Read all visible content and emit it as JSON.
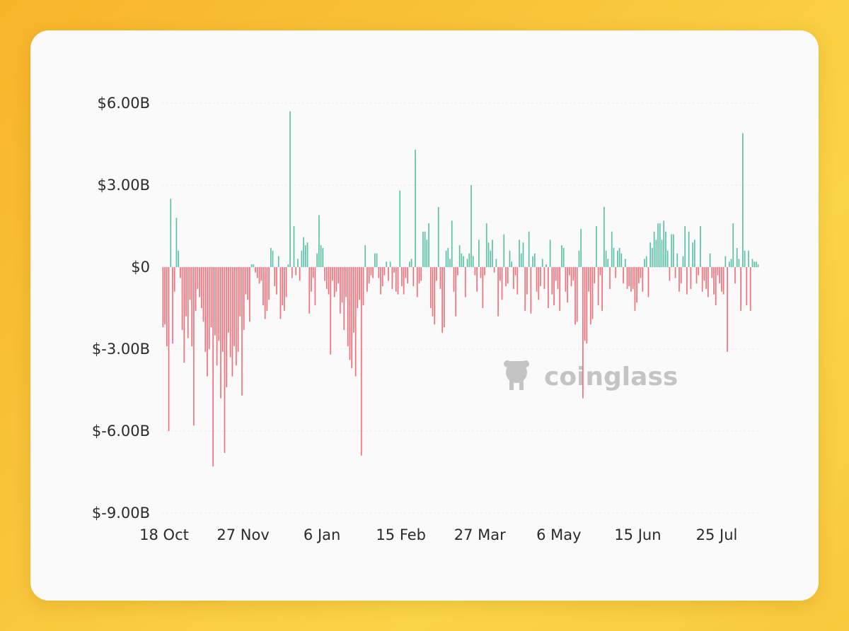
{
  "colors": {
    "positive": "#5cc2a6",
    "negative": "#f2707a",
    "grid": "#ececec",
    "axis_text": "#2b2b2b",
    "watermark": "#c4c4c4"
  },
  "watermark": {
    "text": "coinglass",
    "icon": "coinglass-logo-icon"
  },
  "chart_data": {
    "type": "bar",
    "title": "",
    "xlabel": "",
    "ylabel": "",
    "ylim": [
      -9,
      6
    ],
    "y_unit": "billion USD",
    "grid": true,
    "legend": "none",
    "y_ticks": [
      {
        "value": 6,
        "label": "$6.00B"
      },
      {
        "value": 3,
        "label": "$3.00B"
      },
      {
        "value": 0,
        "label": "$0"
      },
      {
        "value": -3,
        "label": "$-3.00B"
      },
      {
        "value": -6,
        "label": "$-6.00B"
      },
      {
        "value": -9,
        "label": "$-9.00B"
      }
    ],
    "x_ticks": [
      "18 Oct",
      "27 Nov",
      "6 Jan",
      "15 Feb",
      "27 Mar",
      "6 May",
      "15 Jun",
      "25 Jul"
    ],
    "values": [
      -2.2,
      -2.1,
      -2.9,
      -6.0,
      2.5,
      -2.8,
      -0.9,
      1.8,
      0.6,
      -0.4,
      -2.3,
      -3.5,
      -1.8,
      -2.6,
      -1.2,
      -2.9,
      -5.8,
      -1.6,
      -0.8,
      -1.1,
      -1.5,
      -2.0,
      -3.1,
      -4.0,
      -3.0,
      -2.2,
      -7.3,
      -2.5,
      -3.6,
      -2.7,
      -4.8,
      -3.1,
      -6.8,
      -4.4,
      -2.4,
      -3.3,
      -4.0,
      -2.9,
      -3.6,
      -3.1,
      -1.8,
      -4.7,
      -2.3,
      -1.0,
      -1.2,
      -2.0,
      0.1,
      0.1,
      -0.2,
      -0.4,
      -0.6,
      -0.5,
      -1.4,
      -1.9,
      -1.6,
      -1.2,
      0.7,
      0.6,
      -0.7,
      -1.0,
      0.4,
      -1.9,
      -1.4,
      -1.6,
      -1.1,
      0.1,
      5.7,
      -0.4,
      1.5,
      -0.3,
      0.3,
      -0.5,
      0.6,
      1.1,
      0.8,
      0.9,
      -1.7,
      -0.9,
      -0.4,
      -1.4,
      0.5,
      1.9,
      0.8,
      0.7,
      -0.5,
      -0.8,
      -1.0,
      -3.2,
      -0.5,
      -1.1,
      -0.9,
      -0.6,
      -1.7,
      -1.3,
      -2.3,
      -1.1,
      -2.9,
      -3.4,
      -3.7,
      -2.4,
      -4.0,
      -1.5,
      -1.2,
      -6.9,
      -1.4,
      0.8,
      -0.9,
      -0.6,
      -0.3,
      -0.4,
      0.5,
      0.5,
      -0.4,
      -1.0,
      -0.7,
      -0.3,
      0.2,
      -0.5,
      0.2,
      -0.8,
      -0.2,
      -0.9,
      -1.0,
      2.8,
      -0.7,
      -1.0,
      -0.4,
      -0.6,
      0.2,
      0.3,
      -0.7,
      4.3,
      -1.1,
      -0.6,
      -0.5,
      1.3,
      1.3,
      1.0,
      1.6,
      -1.5,
      -1.8,
      -2.1,
      -0.5,
      2.2,
      -0.8,
      -2.4,
      -2.2,
      0.6,
      0.7,
      0.3,
      1.7,
      -0.9,
      -1.8,
      -0.3,
      0.8,
      0.5,
      0.4,
      -1.1,
      0.3,
      0.5,
      3.0,
      0.4,
      -0.3,
      -0.9,
      1.0,
      -0.4,
      -1.5,
      -0.3,
      1.6,
      0.9,
      0.6,
      1.0,
      -0.2,
      0.3,
      -1.8,
      -0.5,
      -1.2,
      1.2,
      -0.7,
      -0.6,
      0.6,
      0.2,
      -0.8,
      -0.3,
      -1.0,
      1.0,
      0.5,
      0.9,
      -1.6,
      -1.0,
      1.3,
      -1.7,
      0.4,
      0.5,
      -0.9,
      -1.2,
      -0.7,
      0.3,
      -0.8,
      0.1,
      -1.5,
      1.0,
      -1.0,
      -1.4,
      -0.5,
      -0.8,
      -1.6,
      0.8,
      0.7,
      -0.9,
      -1.3,
      -0.3,
      -0.7,
      -0.5,
      -2.1,
      -2.0,
      0.6,
      1.4,
      -4.8,
      -2.7,
      -2.8,
      -0.9,
      -2.1,
      -1.9,
      -0.6,
      1.5,
      -1.4,
      -0.3,
      -1.6,
      2.2,
      0.6,
      0.3,
      -0.8,
      1.3,
      0.7,
      -0.4,
      0.6,
      0.7,
      0.5,
      -0.6,
      0.3,
      -0.8,
      -0.7,
      -0.9,
      -0.8,
      -1.6,
      -1.3,
      -0.6,
      -0.4,
      -0.9,
      0.3,
      0.4,
      -1.1,
      0.9,
      0.7,
      1.3,
      1.0,
      1.6,
      1.6,
      1.0,
      1.7,
      1.3,
      0.6,
      -0.5,
      1.2,
      1.2,
      -0.4,
      0.5,
      -0.9,
      -0.6,
      0.4,
      1.5,
      -1.0,
      1.3,
      -0.8,
      0.9,
      1.0,
      -0.6,
      -0.3,
      1.5,
      -0.9,
      -0.5,
      -0.8,
      -1.1,
      0.5,
      -0.4,
      -1.0,
      -1.4,
      -0.3,
      -0.6,
      -0.9,
      -1.0,
      0.4,
      -3.1,
      0.2,
      0.3,
      1.6,
      -0.6,
      0.7,
      0.3,
      -1.6,
      4.9,
      0.6,
      -1.4,
      0.6,
      -1.6,
      0.3,
      0.2,
      0.2,
      0.1
    ]
  }
}
